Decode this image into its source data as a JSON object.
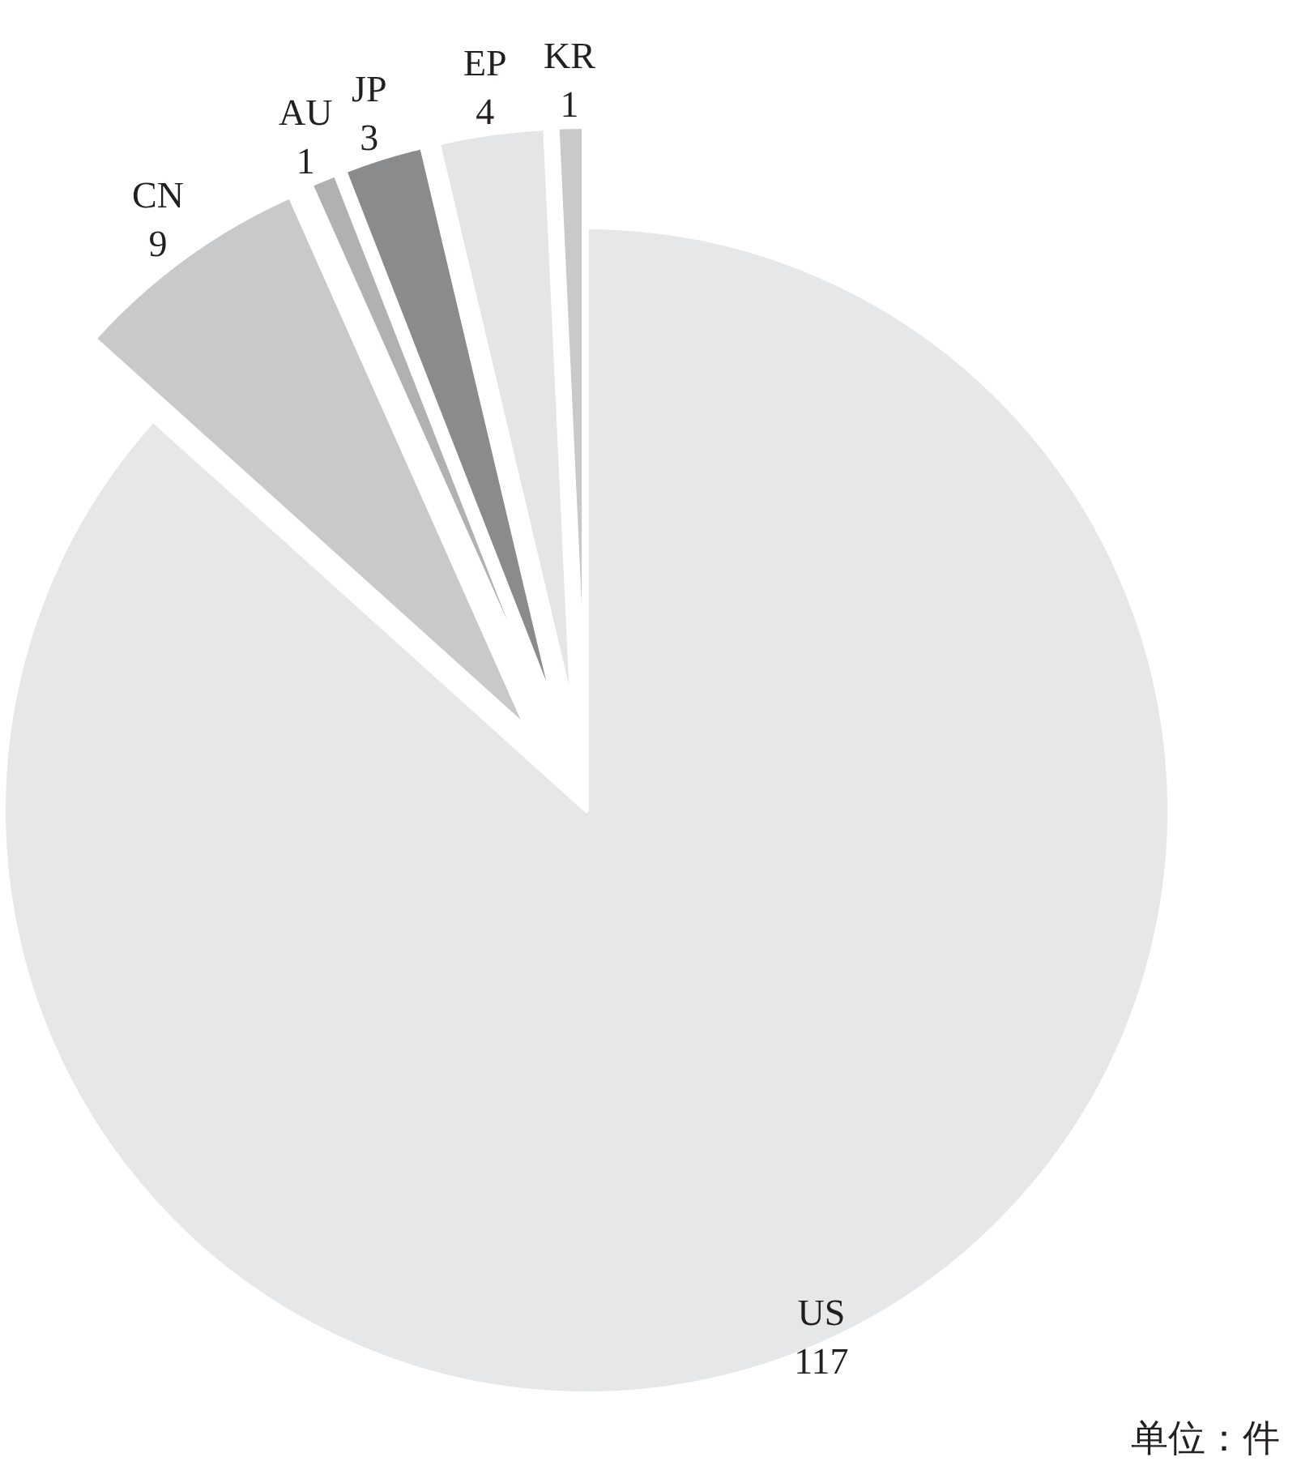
{
  "chart_data": {
    "type": "pie",
    "categories": [
      "US",
      "CN",
      "AU",
      "JP",
      "EP",
      "KR"
    ],
    "values": [
      117,
      9,
      1,
      3,
      4,
      1
    ],
    "colors": [
      "#e6e7e8",
      "#c8c9ca",
      "#b0b1b3",
      "#8a8b8d",
      "#e4e5e6",
      "#c8c9ca"
    ],
    "data_labels": true,
    "annotations": [
      "单位：件"
    ]
  }
}
